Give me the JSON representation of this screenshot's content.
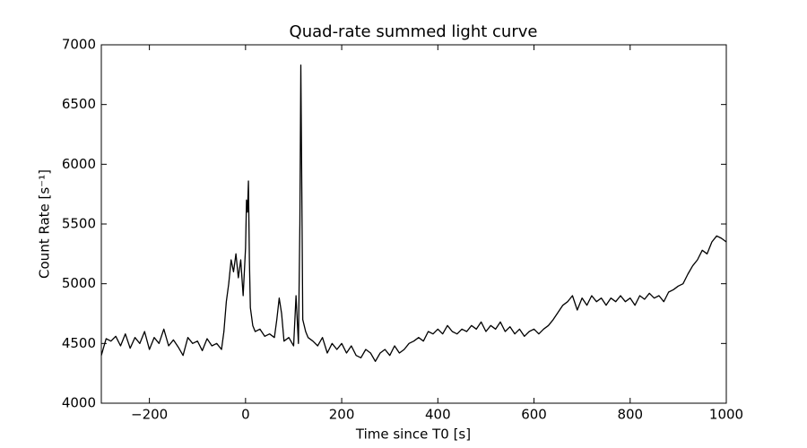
{
  "chart_data": {
    "type": "line",
    "title": "Quad-rate summed light curve",
    "x_label": "Time since T0 [s]",
    "y_label": "Count Rate [s⁻¹]",
    "xlim": [
      -300,
      1000
    ],
    "ylim": [
      4000,
      7000
    ],
    "xticks": [
      {
        "value": -200,
        "label": "−200"
      },
      0,
      200,
      400,
      600,
      800,
      1000
    ],
    "yticks": [
      4000,
      4500,
      5000,
      5500,
      6000,
      6500,
      7000
    ],
    "grid": false,
    "series": [
      {
        "color": "#000000",
        "x": [
          -300,
          -290,
          -280,
          -270,
          -260,
          -250,
          -240,
          -230,
          -220,
          -210,
          -200,
          -190,
          -180,
          -170,
          -160,
          -150,
          -140,
          -130,
          -120,
          -110,
          -100,
          -90,
          -80,
          -70,
          -60,
          -50,
          -45,
          -40,
          -35,
          -30,
          -25,
          -20,
          -15,
          -10,
          -5,
          0,
          2,
          4,
          6,
          8,
          10,
          15,
          20,
          30,
          40,
          50,
          60,
          65,
          70,
          75,
          80,
          90,
          100,
          105,
          110,
          113,
          115,
          117,
          119,
          125,
          130,
          140,
          150,
          160,
          170,
          180,
          190,
          200,
          210,
          220,
          230,
          240,
          250,
          260,
          270,
          280,
          290,
          300,
          310,
          320,
          330,
          340,
          350,
          360,
          370,
          380,
          390,
          400,
          410,
          420,
          430,
          440,
          450,
          460,
          470,
          480,
          490,
          500,
          510,
          520,
          530,
          540,
          550,
          560,
          570,
          580,
          590,
          600,
          610,
          620,
          630,
          640,
          650,
          660,
          670,
          680,
          690,
          700,
          710,
          720,
          730,
          740,
          750,
          760,
          770,
          780,
          790,
          800,
          810,
          820,
          830,
          840,
          850,
          860,
          870,
          880,
          890,
          900,
          910,
          920,
          930,
          940,
          950,
          960,
          970,
          980,
          990,
          1000
        ],
        "values": [
          4400,
          4540,
          4520,
          4560,
          4480,
          4580,
          4460,
          4550,
          4500,
          4600,
          4450,
          4550,
          4500,
          4620,
          4480,
          4530,
          4470,
          4400,
          4550,
          4500,
          4520,
          4440,
          4540,
          4480,
          4500,
          4450,
          4600,
          4850,
          5000,
          5200,
          5100,
          5250,
          5050,
          5200,
          4900,
          5300,
          5700,
          5600,
          5860,
          5200,
          4800,
          4650,
          4600,
          4620,
          4560,
          4580,
          4550,
          4700,
          4880,
          4750,
          4520,
          4550,
          4480,
          4900,
          4500,
          5500,
          6830,
          5800,
          4700,
          4600,
          4550,
          4520,
          4480,
          4550,
          4420,
          4500,
          4450,
          4500,
          4420,
          4480,
          4400,
          4380,
          4450,
          4420,
          4350,
          4420,
          4450,
          4400,
          4480,
          4420,
          4450,
          4500,
          4520,
          4550,
          4520,
          4600,
          4580,
          4620,
          4580,
          4650,
          4600,
          4580,
          4620,
          4600,
          4650,
          4620,
          4680,
          4600,
          4650,
          4620,
          4680,
          4600,
          4640,
          4580,
          4620,
          4560,
          4600,
          4620,
          4580,
          4620,
          4650,
          4700,
          4760,
          4820,
          4850,
          4900,
          4780,
          4880,
          4820,
          4900,
          4850,
          4880,
          4820,
          4880,
          4850,
          4900,
          4850,
          4880,
          4820,
          4900,
          4870,
          4920,
          4880,
          4900,
          4850,
          4930,
          4950,
          4980,
          5000,
          5080,
          5150,
          5200,
          5280,
          5250,
          5350,
          5400,
          5380,
          5350
        ]
      }
    ]
  }
}
